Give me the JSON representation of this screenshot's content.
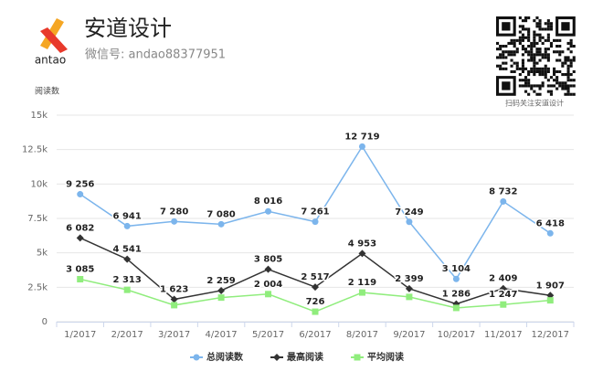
{
  "header": {
    "logo_text": "antao",
    "title": "安道设计",
    "subtitle": "微信号: andao88377951",
    "qr_caption": "扫码关注安道设计"
  },
  "chart_data": {
    "type": "line",
    "y_label": "阅读数",
    "categories": [
      "1/2017",
      "2/2017",
      "3/2017",
      "4/2017",
      "5/2017",
      "6/2017",
      "8/2017",
      "9/2017",
      "10/2017",
      "11/2017",
      "12/2017"
    ],
    "series": [
      {
        "name": "总阅读数",
        "color": "#7cb5ec",
        "marker": "circle",
        "values": [
          9256,
          6941,
          7280,
          7080,
          8016,
          7261,
          12719,
          7249,
          3104,
          8732,
          6418
        ],
        "value_labels": [
          "9 256",
          "6 941",
          "7 280",
          "7 080",
          "8 016",
          "7 261",
          "12 719",
          "7 249",
          "3 104",
          "8 732",
          "6 418"
        ]
      },
      {
        "name": "最高阅读",
        "color": "#333333",
        "marker": "diamond",
        "values": [
          6082,
          4541,
          1623,
          2259,
          3805,
          2517,
          4953,
          2399,
          1286,
          2409,
          1907
        ],
        "value_labels": [
          "6 082",
          "4 541",
          "1 623",
          "2 259",
          "3 805",
          "2 517",
          "4 953",
          "2 399",
          "1 286",
          "2 409",
          "1 907"
        ]
      },
      {
        "name": "平均阅读",
        "color": "#90ed7d",
        "marker": "square",
        "values": [
          3085,
          2313,
          1200,
          1750,
          2004,
          726,
          2119,
          1800,
          1000,
          1247,
          1550
        ],
        "value_labels": [
          "3 085",
          "2 313",
          null,
          null,
          "2 004",
          "726",
          "2 119",
          null,
          null,
          "1 247",
          null
        ]
      }
    ],
    "ylim": [
      0,
      15000
    ],
    "yticks": [
      0,
      {
        "value": 2500,
        "label": "2.5k"
      },
      {
        "value": 5000,
        "label": "5k"
      },
      {
        "value": 7500,
        "label": "7.5k"
      },
      {
        "value": 10000,
        "label": "10k"
      },
      {
        "value": 12500,
        "label": "12.5k"
      },
      {
        "value": 15000,
        "label": "15k"
      }
    ],
    "grid": true
  }
}
